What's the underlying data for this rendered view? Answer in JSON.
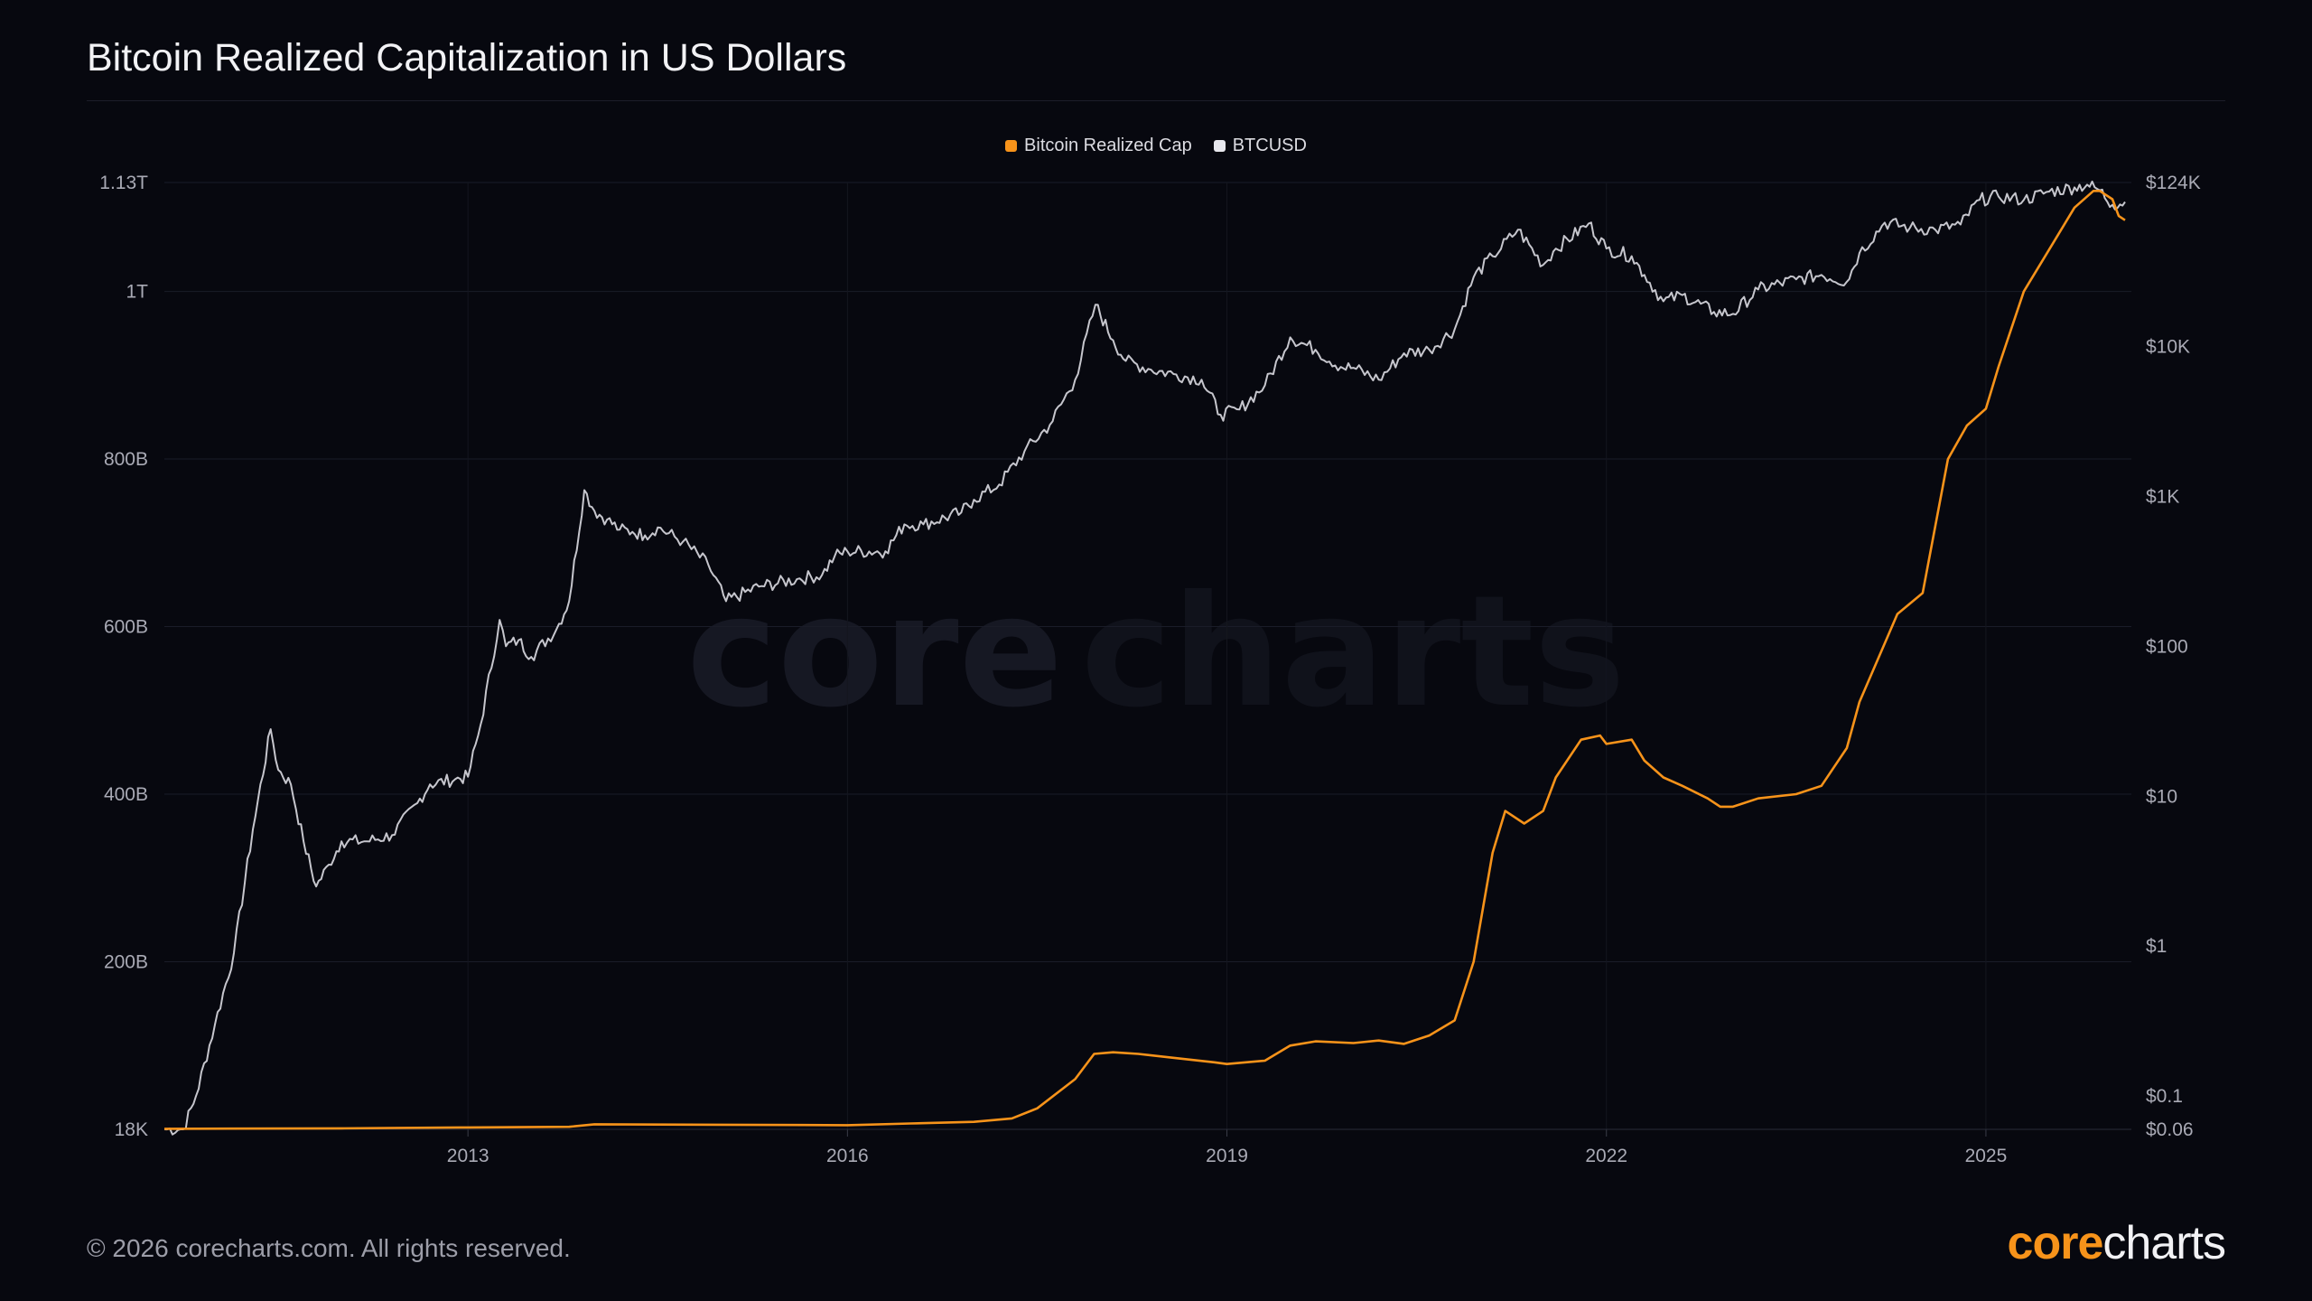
{
  "title": "Bitcoin Realized Capitalization in US Dollars",
  "footer": {
    "copyright": "© 2026 corecharts.com. All rights reserved."
  },
  "brand": {
    "part1": "core",
    "part2": "charts",
    "accent": "#f7931a"
  },
  "watermark": {
    "part1": "core",
    "part2": "charts"
  },
  "chart_data": {
    "type": "line",
    "title": "Bitcoin Realized Capitalization in US Dollars",
    "legend_position": "top-center",
    "legend": [
      {
        "label": "Bitcoin Realized Cap",
        "color": "#f7931a"
      },
      {
        "label": "BTCUSD",
        "color": "#e8e8ee"
      }
    ],
    "x_range": [
      2010.6,
      2026.15
    ],
    "x_ticks": [
      {
        "value": 2013,
        "label": "2013"
      },
      {
        "value": 2016,
        "label": "2016"
      },
      {
        "value": 2019,
        "label": "2019"
      },
      {
        "value": 2022,
        "label": "2022"
      },
      {
        "value": 2025,
        "label": "2025"
      }
    ],
    "left_axis": {
      "scale": "linear",
      "range": [
        18000,
        1130000000000
      ],
      "ticks": [
        {
          "value": 18000,
          "label": "18K"
        },
        {
          "value": 200000000000,
          "label": "200B"
        },
        {
          "value": 400000000000,
          "label": "400B"
        },
        {
          "value": 600000000000,
          "label": "600B"
        },
        {
          "value": 800000000000,
          "label": "800B"
        },
        {
          "value": 1000000000000,
          "label": "1T"
        },
        {
          "value": 1130000000000,
          "label": "1.13T"
        }
      ]
    },
    "right_axis": {
      "scale": "log",
      "range": [
        0.06,
        124000
      ],
      "ticks": [
        {
          "value": 0.06,
          "label": "$0.06"
        },
        {
          "value": 0.1,
          "label": "$0.1"
        },
        {
          "value": 1,
          "label": "$1"
        },
        {
          "value": 10,
          "label": "$10"
        },
        {
          "value": 100,
          "label": "$100"
        },
        {
          "value": 1000,
          "label": "$1K"
        },
        {
          "value": 10000,
          "label": "$10K"
        },
        {
          "value": 124000,
          "label": "$124K"
        }
      ]
    },
    "series": [
      {
        "name": "Bitcoin Realized Cap",
        "axis": "left",
        "color": "#f7931a",
        "x": [
          2010.6,
          2012.0,
          2013.0,
          2013.8,
          2014.0,
          2015.0,
          2016.0,
          2016.5,
          2017.0,
          2017.3,
          2017.5,
          2017.8,
          2017.95,
          2018.1,
          2018.3,
          2018.6,
          2018.9,
          2019.0,
          2019.3,
          2019.5,
          2019.7,
          2020.0,
          2020.2,
          2020.4,
          2020.6,
          2020.8,
          2020.95,
          2021.1,
          2021.2,
          2021.35,
          2021.5,
          2021.6,
          2021.8,
          2021.95,
          2022.0,
          2022.2,
          2022.3,
          2022.45,
          2022.6,
          2022.8,
          2022.9,
          2023.0,
          2023.2,
          2023.5,
          2023.7,
          2023.9,
          2024.0,
          2024.2,
          2024.3,
          2024.5,
          2024.7,
          2024.85,
          2025.0,
          2025.1,
          2025.3,
          2025.5,
          2025.7,
          2025.85,
          2025.9,
          2026.0,
          2026.05,
          2026.1
        ],
        "values": [
          600000000.0,
          1200000000.0,
          2300000000.0,
          3000000000.0,
          6000000000.0,
          5500000000.0,
          5000000000.0,
          7000000000.0,
          9000000000.0,
          13000000000.0,
          25000000000.0,
          60000000000.0,
          90000000000.0,
          92000000000.0,
          90000000000.0,
          85000000000.0,
          80000000000.0,
          78000000000.0,
          82000000000.0,
          100000000000.0,
          105000000000.0,
          103000000000.0,
          106000000000.0,
          102000000000.0,
          112000000000.0,
          130000000000.0,
          200000000000.0,
          330000000000.0,
          380000000000.0,
          365000000000.0,
          380000000000.0,
          420000000000.0,
          465000000000.0,
          470000000000.0,
          460000000000.0,
          465000000000.0,
          440000000000.0,
          420000000000.0,
          410000000000.0,
          395000000000.0,
          385000000000.0,
          385000000000.0,
          395000000000.0,
          400000000000.0,
          410000000000.0,
          455000000000.0,
          510000000000.0,
          580000000000.0,
          615000000000.0,
          640000000000.0,
          800000000000.0,
          840000000000.0,
          860000000000.0,
          910000000000.0,
          1000000000000.0,
          1050000000000.0,
          1100000000000.0,
          1120000000000.0,
          1120000000000.0,
          1110000000000.0,
          1090000000000.0,
          1085000000000.0
        ]
      },
      {
        "name": "BTCUSD",
        "axis": "right",
        "color": "#e8e8ee",
        "x": [
          2010.6,
          2010.75,
          2010.85,
          2011.0,
          2011.15,
          2011.3,
          2011.44,
          2011.5,
          2011.6,
          2011.7,
          2011.8,
          2011.9,
          2012.0,
          2012.2,
          2012.4,
          2012.6,
          2012.7,
          2012.9,
          2013.0,
          2013.1,
          2013.25,
          2013.3,
          2013.4,
          2013.5,
          2013.7,
          2013.8,
          2013.92,
          2014.0,
          2014.1,
          2014.2,
          2014.3,
          2014.4,
          2014.5,
          2014.7,
          2014.9,
          2015.04,
          2015.3,
          2015.6,
          2015.8,
          2015.9,
          2016.0,
          2016.3,
          2016.45,
          2016.6,
          2016.9,
          2017.0,
          2017.2,
          2017.4,
          2017.6,
          2017.8,
          2017.96,
          2018.1,
          2018.2,
          2018.4,
          2018.6,
          2018.8,
          2018.95,
          2019.1,
          2019.3,
          2019.5,
          2019.7,
          2019.9,
          2020.0,
          2020.2,
          2020.4,
          2020.6,
          2020.8,
          2020.95,
          2021.1,
          2021.3,
          2021.5,
          2021.6,
          2021.86,
          2022.0,
          2022.2,
          2022.3,
          2022.45,
          2022.6,
          2022.85,
          2023.0,
          2023.2,
          2023.5,
          2023.7,
          2023.9,
          2024.0,
          2024.2,
          2024.4,
          2024.6,
          2024.8,
          2024.95,
          2025.1,
          2025.3,
          2025.5,
          2025.7,
          2025.8,
          2025.9,
          2026.0,
          2026.1
        ],
        "values": [
          0.06,
          0.06,
          0.1,
          0.3,
          0.9,
          6,
          28,
          15,
          12,
          5,
          2.5,
          3.5,
          5,
          5,
          5.5,
          9,
          12,
          13,
          13.5,
          30,
          150,
          100,
          110,
          85,
          130,
          200,
          1100,
          800,
          700,
          600,
          580,
          550,
          620,
          500,
          350,
          200,
          250,
          280,
          300,
          400,
          430,
          430,
          650,
          650,
          780,
          950,
          1200,
          2000,
          3000,
          6000,
          19000,
          11000,
          8000,
          7000,
          6500,
          6000,
          3500,
          3800,
          5500,
          11500,
          9500,
          7300,
          7200,
          6000,
          9000,
          9500,
          13000,
          29000,
          40000,
          60000,
          35000,
          45000,
          66000,
          45000,
          40000,
          30000,
          20000,
          22000,
          17000,
          16500,
          24000,
          28000,
          30000,
          27000,
          42000,
          67000,
          62000,
          60000,
          65000,
          95000,
          100000,
          95000,
          108000,
          115000,
          120000,
          110000,
          88000,
          92000
        ]
      }
    ]
  }
}
